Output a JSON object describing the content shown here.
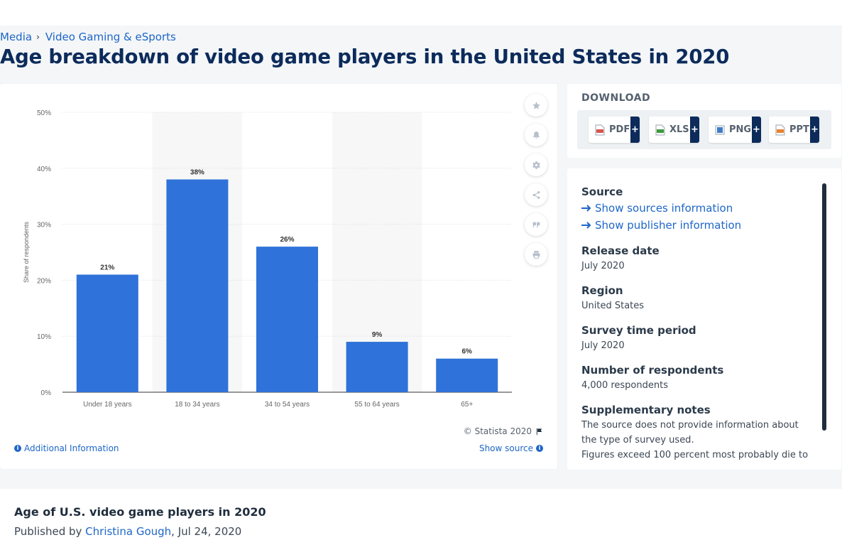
{
  "breadcrumb": {
    "items": [
      "Media",
      "Video Gaming & eSports"
    ],
    "separator": "›"
  },
  "page_title": "Age breakdown of video game players in the United States in 2020",
  "chart_data": {
    "type": "bar",
    "title": "",
    "categories": [
      "Under 18 years",
      "18 to 34 years",
      "34 to 54 years",
      "55 to 64 years",
      "65+"
    ],
    "values": [
      21,
      38,
      26,
      9,
      6
    ],
    "value_labels": [
      "21%",
      "38%",
      "26%",
      "9%",
      "6%"
    ],
    "xlabel": "",
    "ylabel": "Share of respondents",
    "ylim": [
      0,
      50
    ],
    "yticks": [
      "0%",
      "10%",
      "20%",
      "30%",
      "40%",
      "50%"
    ],
    "grid": true,
    "bar_color": "#2f72d9",
    "stripe_color": "#f7f7f7"
  },
  "chart_footer": {
    "copyright": "© Statista 2020",
    "additional_info": "Additional Information",
    "show_source": "Show source"
  },
  "tools": [
    "star-icon",
    "bell-icon",
    "gear-icon",
    "share-icon",
    "quote-icon",
    "print-icon"
  ],
  "download": {
    "title": "DOWNLOAD",
    "buttons": [
      {
        "label": "PDF",
        "color": "#d9534f"
      },
      {
        "label": "XLS",
        "color": "#3c9a3c"
      },
      {
        "label": "PNG",
        "color": "#3d7cc9"
      },
      {
        "label": "PPT",
        "color": "#e8822e"
      }
    ],
    "plus": "+"
  },
  "meta": {
    "source_label": "Source",
    "show_sources": "Show sources information",
    "show_publisher": "Show publisher information",
    "release_label": "Release date",
    "release_value": "July 2020",
    "region_label": "Region",
    "region_value": "United States",
    "survey_label": "Survey time period",
    "survey_value": "July 2020",
    "respondents_label": "Number of respondents",
    "respondents_value": "4,000 respondents",
    "notes_label": "Supplementary notes",
    "notes_value_1": "The source does not provide information about the type of survey used.",
    "notes_value_2": "Figures exceed 100 percent most probably die to"
  },
  "article": {
    "title": "Age of U.S. video game players in 2020",
    "published_prefix": "Published by",
    "author": "Christina Gough",
    "date": ", Jul 24, 2020"
  }
}
